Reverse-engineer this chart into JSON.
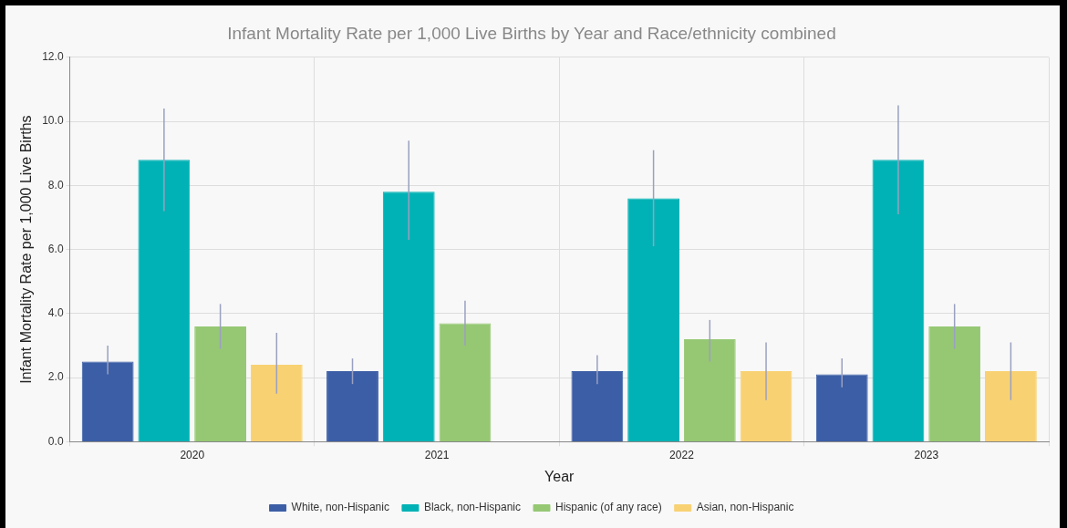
{
  "chart_data": {
    "type": "bar",
    "title": "Infant Mortality Rate per 1,000 Live Births by Year and Race/ethnicity combined",
    "xlabel": "Year",
    "ylabel": "Infant Mortality Rate per 1,000 Live Births",
    "categories": [
      "2020",
      "2021",
      "2022",
      "2023"
    ],
    "series": [
      {
        "name": "White, non-Hispanic",
        "color": "#3b5ea6",
        "values": [
          2.5,
          2.2,
          2.2,
          2.1
        ],
        "errors": [
          [
            2.1,
            3.0
          ],
          [
            1.8,
            2.6
          ],
          [
            1.8,
            2.7
          ],
          [
            1.7,
            2.6
          ]
        ]
      },
      {
        "name": "Black, non-Hispanic",
        "color": "#00b2b5",
        "values": [
          8.8,
          7.8,
          7.6,
          8.8
        ],
        "errors": [
          [
            7.2,
            10.4
          ],
          [
            6.3,
            9.4
          ],
          [
            6.1,
            9.1
          ],
          [
            7.1,
            10.5
          ]
        ]
      },
      {
        "name": "Hispanic (of any race)",
        "color": "#96c874",
        "values": [
          3.6,
          3.7,
          3.2,
          3.6
        ],
        "errors": [
          [
            2.9,
            4.3
          ],
          [
            3.0,
            4.4
          ],
          [
            2.5,
            3.8
          ],
          [
            2.9,
            4.3
          ]
        ]
      },
      {
        "name": "Asian, non-Hispanic",
        "color": "#f8d173",
        "values": [
          2.4,
          null,
          2.2,
          2.2
        ],
        "errors": [
          [
            1.5,
            3.4
          ],
          null,
          [
            1.3,
            3.1
          ],
          [
            1.3,
            3.1
          ]
        ]
      }
    ],
    "ylim": [
      0,
      12
    ],
    "yticks": [
      {
        "value": 0,
        "label": "0.0"
      },
      {
        "value": 2,
        "label": "2.0"
      },
      {
        "value": 4,
        "label": "4.0"
      },
      {
        "value": 6,
        "label": "6.0"
      },
      {
        "value": 8,
        "label": "8.0"
      },
      {
        "value": 10,
        "label": "10.0"
      },
      {
        "value": 12,
        "label": "12.0"
      }
    ],
    "grid": true,
    "legend": "bottom"
  }
}
